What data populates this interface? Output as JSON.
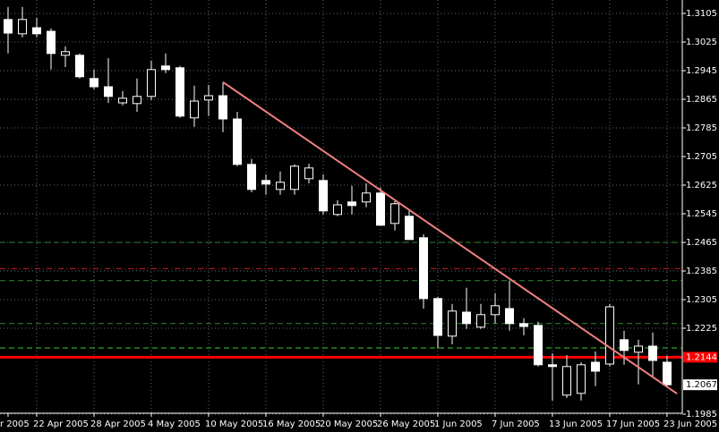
{
  "chart_data": {
    "type": "candlestick",
    "categories": [
      "r 2005",
      null,
      "22 Apr 2005",
      null,
      null,
      null,
      "28 Apr 2005",
      null,
      null,
      null,
      "4 May 2005",
      null,
      null,
      null,
      "10 May 2005",
      null,
      null,
      null,
      "16 May 2005",
      null,
      null,
      null,
      "20 May 2005",
      null,
      null,
      null,
      "26 May 2005",
      null,
      null,
      null,
      "1 Jun 2005",
      null,
      null,
      null,
      "7 Jun 2005",
      null,
      null,
      null,
      "13 Jun 2005",
      null,
      null,
      null,
      "17 Jun 2005",
      null,
      null,
      null,
      "23 Jun 2005"
    ],
    "open": [
      1.3088,
      1.3048,
      1.3065,
      1.3055,
      1.2988,
      1.2988,
      1.2923,
      1.29,
      1.2855,
      1.2853,
      1.2873,
      1.2958,
      1.2953,
      1.2813,
      1.2863,
      1.2875,
      1.281,
      1.2683,
      1.2638,
      1.2613,
      1.2613,
      1.2643,
      1.2638,
      1.2543,
      1.2578,
      1.2578,
      1.2603,
      1.2518,
      1.2538,
      1.2478,
      1.2308,
      1.2203,
      1.227,
      1.2228,
      1.2263,
      1.228,
      1.2238,
      1.2233,
      1.2123,
      1.2038,
      1.2043,
      1.213,
      1.2125,
      1.2193,
      1.2158,
      1.2175,
      1.213
    ],
    "high": [
      1.3123,
      1.3123,
      1.3093,
      1.3063,
      1.3013,
      1.2993,
      1.2948,
      1.298,
      1.2888,
      1.2923,
      1.2973,
      1.2993,
      1.2958,
      1.2903,
      1.2905,
      1.2913,
      1.283,
      1.2698,
      1.2655,
      1.2663,
      1.2683,
      1.2685,
      1.2655,
      1.2583,
      1.2623,
      1.263,
      1.2618,
      1.258,
      1.2553,
      1.2488,
      1.2313,
      1.2293,
      1.2338,
      1.2293,
      1.2323,
      1.2358,
      1.2253,
      1.2243,
      1.2155,
      1.215,
      1.213,
      1.216,
      1.2293,
      1.2218,
      1.2193,
      1.2213,
      1.2148
    ],
    "low": [
      1.2993,
      1.3038,
      1.3038,
      1.2948,
      1.2955,
      1.2923,
      1.2893,
      1.2855,
      1.2848,
      1.283,
      1.2863,
      1.2938,
      1.2813,
      1.2788,
      1.2818,
      1.2773,
      1.2678,
      1.2605,
      1.2598,
      1.2598,
      1.2598,
      1.263,
      1.2543,
      1.2538,
      1.2543,
      1.2563,
      1.2513,
      1.2498,
      1.2473,
      1.228,
      1.2168,
      1.218,
      1.2223,
      1.2223,
      1.2238,
      1.2218,
      1.2205,
      1.2118,
      1.2023,
      1.203,
      1.2023,
      1.2063,
      1.2118,
      1.2123,
      1.2068,
      1.2088,
      1.2063
    ],
    "close": [
      1.305,
      1.3088,
      1.3048,
      1.2993,
      1.2998,
      1.2928,
      1.29,
      1.2873,
      1.2868,
      1.2873,
      1.2948,
      1.2948,
      1.2818,
      1.286,
      1.2875,
      1.281,
      1.2683,
      1.2613,
      1.2628,
      1.2633,
      1.2678,
      1.2673,
      1.2553,
      1.257,
      1.2568,
      1.2603,
      1.2513,
      1.2573,
      1.2473,
      1.2308,
      1.2205,
      1.2273,
      1.2238,
      1.2263,
      1.2288,
      1.2238,
      1.223,
      1.2123,
      1.2118,
      1.2118,
      1.2123,
      1.2105,
      1.2285,
      1.2163,
      1.2175,
      1.2135,
      1.2067
    ],
    "ylim": [
      1.19875,
      1.31425
    ],
    "yticks": [
      1.3105,
      1.3025,
      1.2945,
      1.2865,
      1.2785,
      1.2705,
      1.2625,
      1.2545,
      1.2465,
      1.2385,
      1.2305,
      1.2225,
      1.1985
    ],
    "grid": true,
    "levels": [
      {
        "value": 1.2465,
        "color": "#2e8b2e",
        "style": "dash"
      },
      {
        "value": 1.2392,
        "color": "#d02020",
        "style": "dashdot"
      },
      {
        "value": 1.2358,
        "color": "#2e8b2e",
        "style": "dash"
      },
      {
        "value": 1.2238,
        "color": "#2e8b2e",
        "style": "dash"
      },
      {
        "value": 1.217,
        "color": "#32cd32",
        "style": "dash"
      },
      {
        "value": 1.2144,
        "color": "#ff0000",
        "style": "solid"
      }
    ],
    "current_price": 1.2067,
    "trendline": {
      "x": [
        15,
        46.7
      ],
      "values": [
        1.2913,
        1.2042
      ],
      "color": "#f08080"
    }
  }
}
